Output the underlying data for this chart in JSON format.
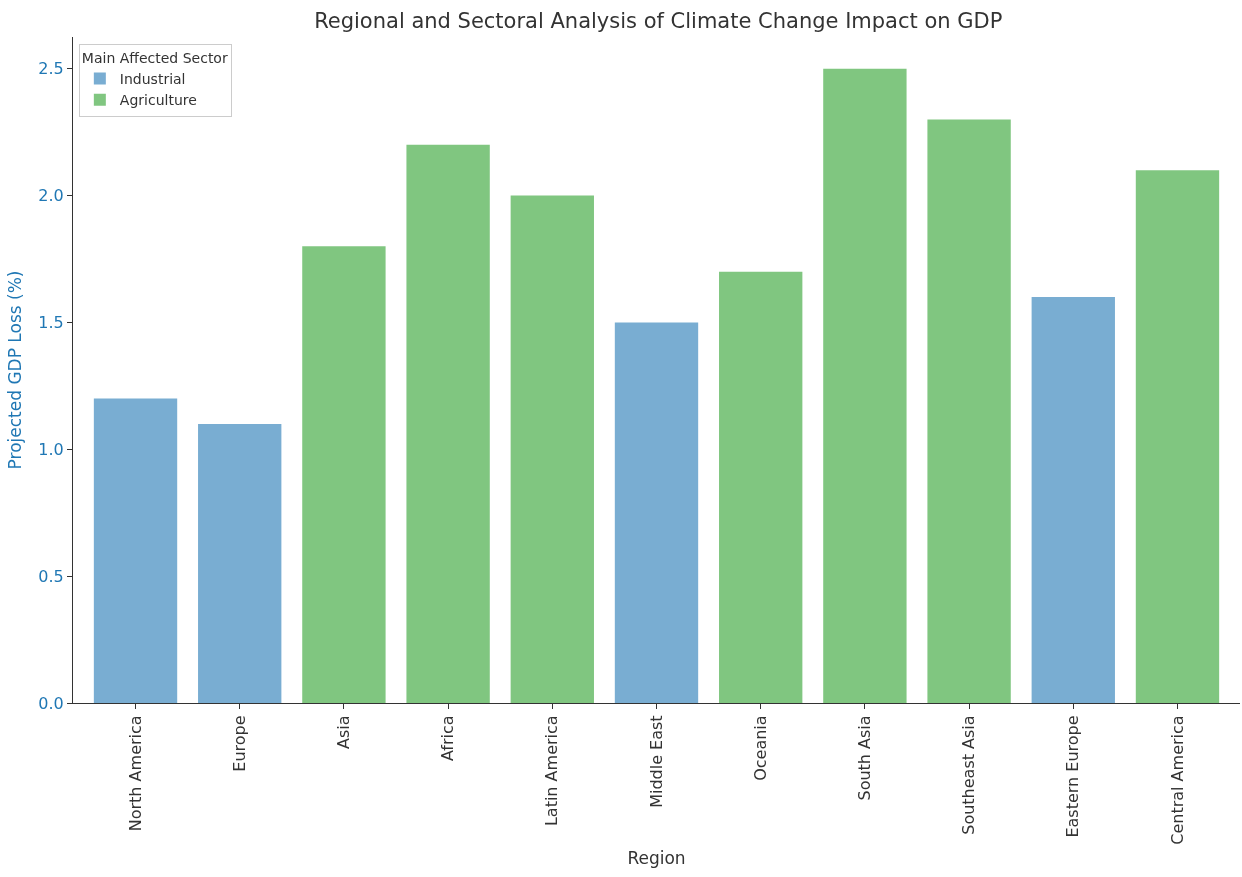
{
  "chart_data": {
    "type": "bar",
    "title": "Regional and Sectoral Analysis of Climate Change Impact on GDP",
    "xlabel": "Region",
    "ylabel": "Projected GDP Loss (%)",
    "legend_title": "Main Affected Sector",
    "categories": [
      "North America",
      "Europe",
      "Asia",
      "Africa",
      "Latin America",
      "Middle East",
      "Oceania",
      "South Asia",
      "Southeast Asia",
      "Eastern Europe",
      "Central America"
    ],
    "series": [
      {
        "name": "Industrial",
        "color": "#79add2",
        "values": [
          1.2,
          1.1,
          null,
          null,
          null,
          1.5,
          null,
          null,
          null,
          1.6,
          null
        ]
      },
      {
        "name": "Agriculture",
        "color": "#80c680",
        "values": [
          null,
          null,
          1.8,
          2.2,
          2.0,
          null,
          1.7,
          2.5,
          2.3,
          null,
          2.1
        ]
      }
    ],
    "ylim": [
      0,
      2.625
    ],
    "yticks": [
      {
        "value": 0,
        "label": "0.0"
      },
      {
        "value": 0.5,
        "label": "0.5"
      },
      {
        "value": 1,
        "label": "1.0"
      },
      {
        "value": 1.5,
        "label": "1.5"
      },
      {
        "value": 2,
        "label": "2.0"
      },
      {
        "value": 2.5,
        "label": "2.5"
      }
    ],
    "grid": false,
    "legend": "top left"
  }
}
